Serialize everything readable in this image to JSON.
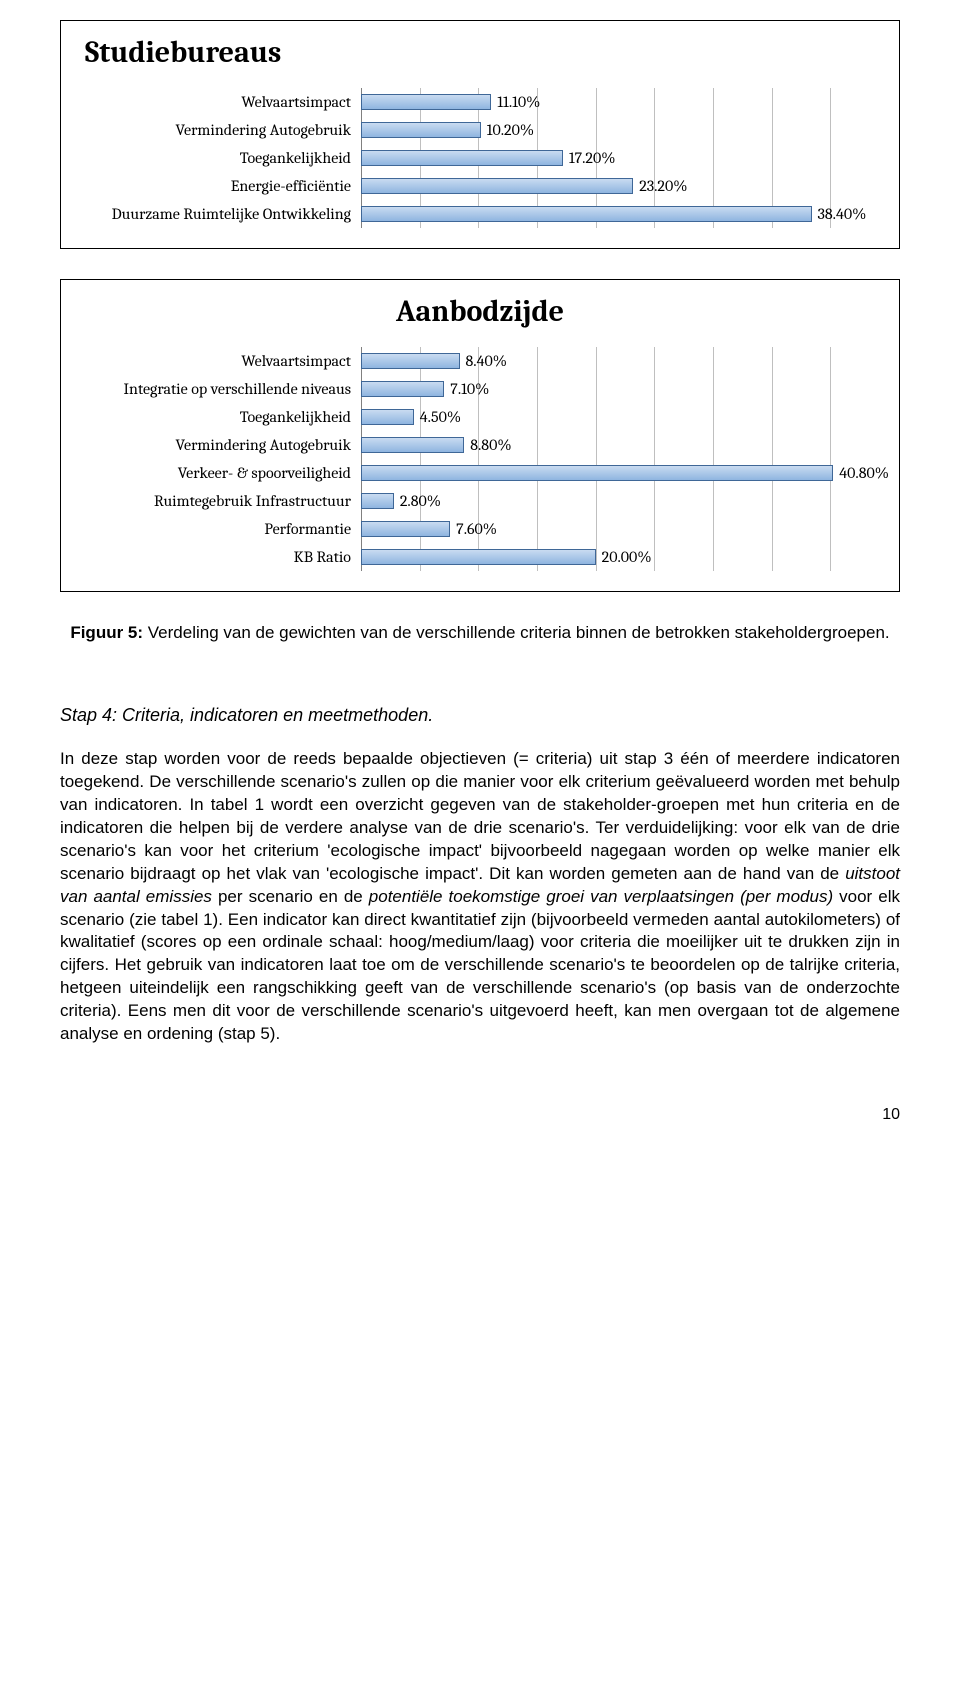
{
  "chart1": {
    "title": "Studiebureaus",
    "max": 45,
    "gridlines": 9,
    "bar_fill_top": "#c9dbf1",
    "bar_fill_bottom": "#8fb5e0",
    "bar_border": "#3f6797",
    "grid_color": "#bfbfbf",
    "items": [
      {
        "label": "Welvaartsimpact",
        "value": 11.1,
        "text": "11.10%"
      },
      {
        "label": "Vermindering Autogebruik",
        "value": 10.2,
        "text": "10.20%"
      },
      {
        "label": "Toegankelijkheid",
        "value": 17.2,
        "text": "17.20%"
      },
      {
        "label": "Energie-efficiëntie",
        "value": 23.2,
        "text": "23.20%"
      },
      {
        "label": "Duurzame Ruimtelijke Ontwikkeling",
        "value": 38.4,
        "text": "38.40%"
      }
    ]
  },
  "chart2": {
    "title": "Aanbodzijde",
    "max": 45,
    "gridlines": 9,
    "bar_fill_top": "#c9dbf1",
    "bar_fill_bottom": "#8fb5e0",
    "bar_border": "#3f6797",
    "grid_color": "#bfbfbf",
    "items": [
      {
        "label": "Welvaartsimpact",
        "value": 8.4,
        "text": "8.40%"
      },
      {
        "label": "Integratie op verschillende niveaus",
        "value": 7.1,
        "text": "7.10%"
      },
      {
        "label": "Toegankelijkheid",
        "value": 4.5,
        "text": "4.50%"
      },
      {
        "label": "Vermindering Autogebruik",
        "value": 8.8,
        "text": "8.80%"
      },
      {
        "label": "Verkeer- & spoorveiligheid",
        "value": 40.8,
        "text": "40.80%"
      },
      {
        "label": "Ruimtegebruik Infrastructuur",
        "value": 2.8,
        "text": "2.80%"
      },
      {
        "label": "Performantie",
        "value": 7.6,
        "text": "7.60%"
      },
      {
        "label": "KB Ratio",
        "value": 20.0,
        "text": "20.00%"
      }
    ]
  },
  "caption": {
    "bold": "Figuur 5:",
    "rest": " Verdeling van de gewichten van de verschillende criteria binnen de betrokken stakeholdergroepen."
  },
  "section_heading": "Stap 4: Criteria, indicatoren en meetmethoden.",
  "body": "In deze stap worden voor de reeds bepaalde objectieven (= criteria) uit stap 3 één of meerdere indicatoren toegekend. De verschillende scenario's zullen op die manier voor elk criterium geëvalueerd worden met behulp van indicatoren.\nIn tabel 1 wordt een overzicht gegeven van de stakeholder-groepen met hun criteria en de indicatoren die helpen bij de verdere analyse van de drie scenario's. Ter verduidelijking: voor elk van de drie scenario's kan voor het criterium 'ecologische impact' bijvoorbeeld nagegaan worden op welke manier elk scenario bijdraagt op het vlak van 'ecologische impact'. Dit kan worden gemeten aan de hand van de ",
  "body_italic1": "uitstoot van aantal emissies",
  "body_mid1": " per scenario en de ",
  "body_italic2": "potentiële toekomstige groei van verplaatsingen (per modus)",
  "body_mid2": " voor elk scenario (zie tabel 1). Een indicator kan direct kwantitatief zijn (bijvoorbeeld vermeden aantal autokilometers) of kwalitatief (scores op een ordinale schaal: hoog/medium/laag) voor criteria die moeilijker uit te drukken zijn in cijfers. Het gebruik van indicatoren laat toe om de verschillende scenario's te beoordelen op de talrijke criteria, hetgeen uiteindelijk een rangschikking geeft van de verschillende scenario's (op basis van de onderzochte criteria). Eens men dit voor de verschillende scenario's uitgevoerd heeft, kan men overgaan tot de algemene analyse en ordening (stap 5).",
  "page_number": "10"
}
